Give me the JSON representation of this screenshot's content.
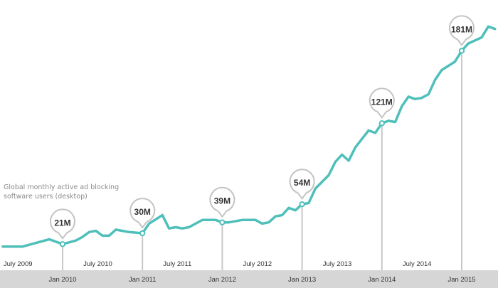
{
  "chart_data": {
    "type": "line",
    "title": "",
    "annotation": "Global monthly active ad blocking software users (desktop)",
    "xlabel": "",
    "ylabel": "",
    "x_unit": "month",
    "y_unit": "millions",
    "ylim": [
      0,
      210
    ],
    "grid": false,
    "legend": "none",
    "line_color": "#4fbfba",
    "band_color": "#d6d6d6",
    "top_ticks": [
      "July 2009",
      "July 2010",
      "July 2011",
      "July 2012",
      "July 2013",
      "July 2014"
    ],
    "band_ticks": [
      "Jan 2010",
      "Jan 2011",
      "Jan 2012",
      "Jan 2013",
      "Jan 2014",
      "Jan 2015"
    ],
    "callouts": [
      {
        "date": "2010-01",
        "label": "21M",
        "value": 21
      },
      {
        "date": "2011-01",
        "label": "30M",
        "value": 30
      },
      {
        "date": "2012-01",
        "label": "39M",
        "value": 39
      },
      {
        "date": "2013-01",
        "label": "54M",
        "value": 54
      },
      {
        "date": "2014-01",
        "label": "121M",
        "value": 121
      },
      {
        "date": "2015-01",
        "label": "181M",
        "value": 181
      }
    ],
    "x": [
      "2009-04",
      "2009-07",
      "2009-09",
      "2009-11",
      "2010-01",
      "2010-03",
      "2010-04",
      "2010-05",
      "2010-06",
      "2010-07",
      "2010-08",
      "2010-09",
      "2010-10",
      "2010-11",
      "2011-01",
      "2011-02",
      "2011-04",
      "2011-05",
      "2011-06",
      "2011-07",
      "2011-08",
      "2011-10",
      "2011-12",
      "2012-01",
      "2012-02",
      "2012-04",
      "2012-05",
      "2012-06",
      "2012-07",
      "2012-08",
      "2012-09",
      "2012-10",
      "2012-11",
      "2012-12",
      "2013-01",
      "2013-02",
      "2013-03",
      "2013-05",
      "2013-06",
      "2013-07",
      "2013-08",
      "2013-09",
      "2013-11",
      "2013-12",
      "2014-01",
      "2014-02",
      "2014-03",
      "2014-04",
      "2014-05",
      "2014-06",
      "2014-07",
      "2014-08",
      "2014-09",
      "2014-10",
      "2014-12",
      "2015-01",
      "2015-02",
      "2015-04",
      "2015-05",
      "2015-06"
    ],
    "values": [
      19,
      19,
      22,
      25,
      21,
      24,
      27,
      31,
      32,
      28,
      28,
      33,
      32,
      31,
      30,
      38,
      45,
      34,
      35,
      34,
      35,
      41,
      41,
      39,
      39,
      41,
      41,
      41,
      38,
      39,
      44,
      45,
      51,
      49,
      54,
      55,
      67,
      78,
      89,
      95,
      90,
      101,
      115,
      113,
      121,
      123,
      122,
      135,
      143,
      141,
      142,
      145,
      157,
      165,
      172,
      181,
      187,
      192,
      201,
      199
    ]
  }
}
